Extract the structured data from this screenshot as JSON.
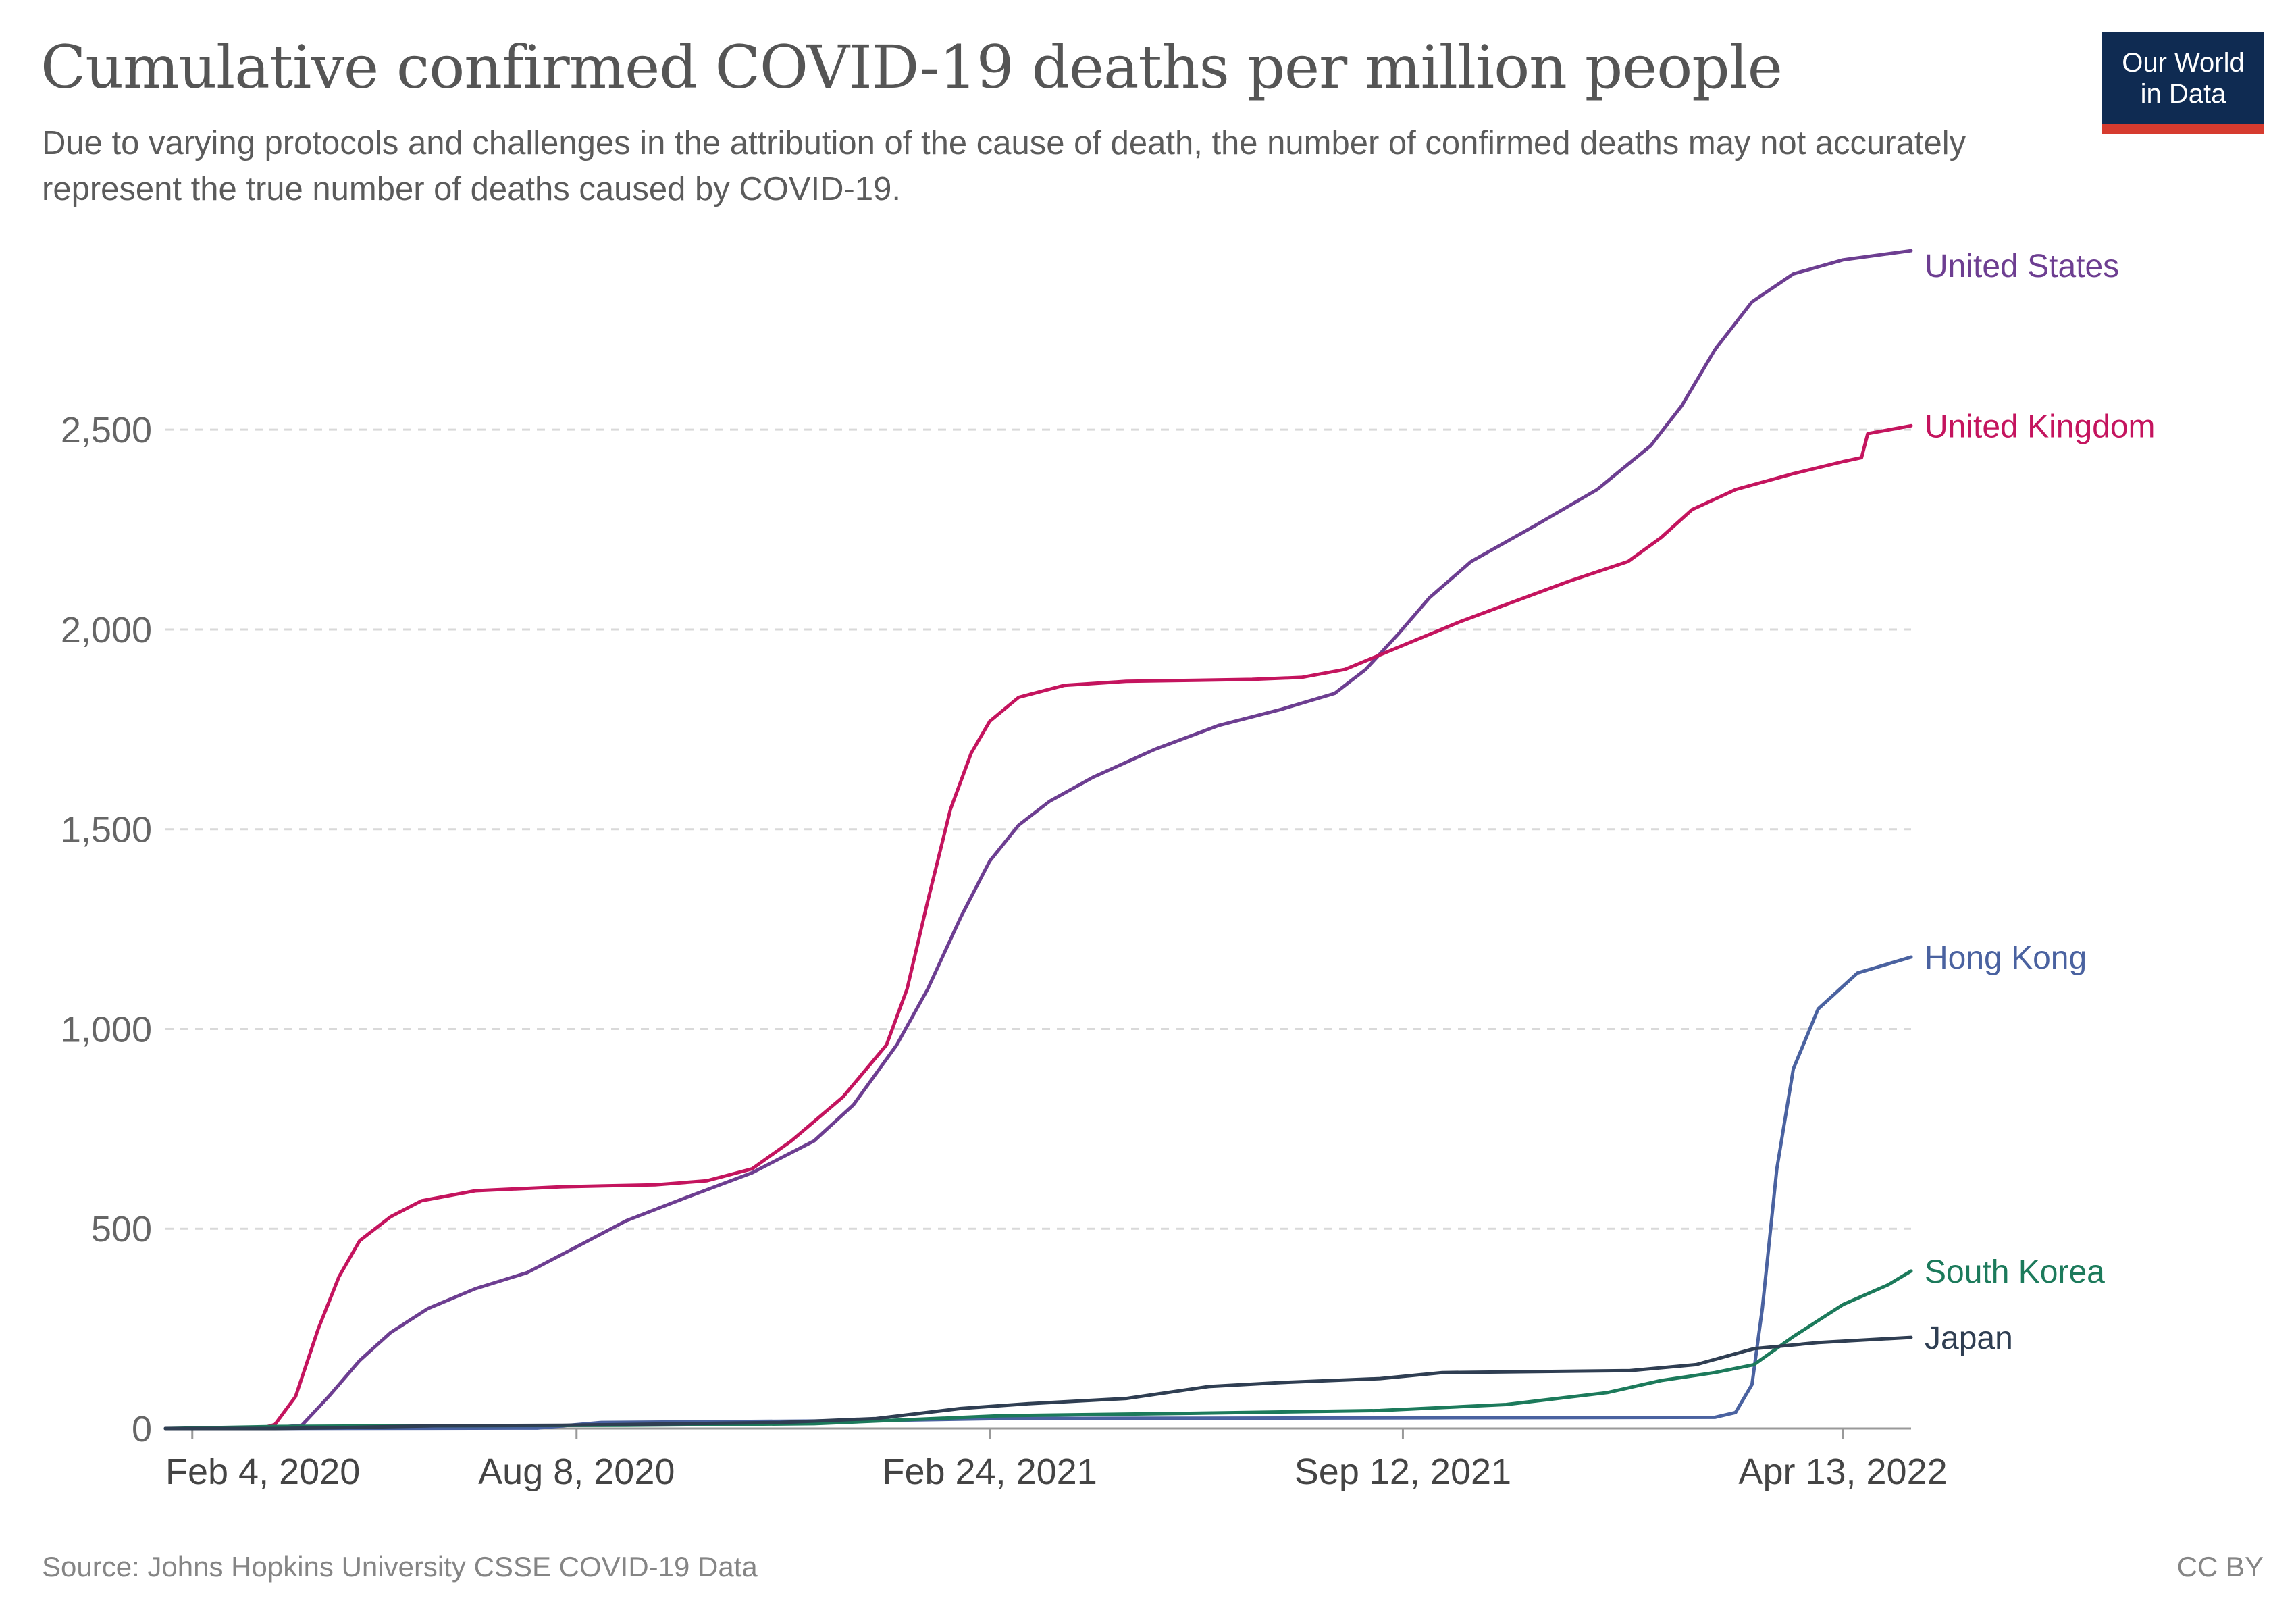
{
  "header": {
    "title": "Cumulative confirmed COVID-19 deaths per million people",
    "subtitle": "Due to varying protocols and challenges in the attribution of the cause of death, the number of confirmed deaths may not accurately represent the true number of deaths caused by COVID-19.",
    "logo_line1": "Our World",
    "logo_line2": "in Data"
  },
  "footer": {
    "source": "Source: Johns Hopkins University CSSE COVID-19 Data",
    "license": "CC BY"
  },
  "colors": {
    "logo_bg": "#0f2b52",
    "logo_accent": "#d63b2f",
    "gridline": "#d9d9d9"
  },
  "chart_data": {
    "type": "line",
    "x_start": "2020-01-22",
    "x_end": "2022-05-16",
    "x_tick_labels": [
      "Feb 4, 2020",
      "Aug 8, 2020",
      "Feb 24, 2021",
      "Sep 12, 2021",
      "Apr 13, 2022"
    ],
    "x_tick_dates": [
      "2020-02-04",
      "2020-08-08",
      "2021-02-24",
      "2021-09-12",
      "2022-04-13"
    ],
    "y_ticks": [
      0,
      500,
      1000,
      1500,
      2000,
      2500
    ],
    "y_tick_labels": [
      "0",
      "500",
      "1,000",
      "1,500",
      "2,000",
      "2,500"
    ],
    "ylim": [
      0,
      2950
    ],
    "grid": "horizontal dashed",
    "legend": "line-end labels",
    "series": [
      {
        "name": "United States",
        "color": "#6d3e91",
        "points": [
          [
            "2020-01-22",
            0
          ],
          [
            "2020-03-10",
            0
          ],
          [
            "2020-03-28",
            8
          ],
          [
            "2020-04-10",
            80
          ],
          [
            "2020-04-25",
            170
          ],
          [
            "2020-05-10",
            240
          ],
          [
            "2020-05-28",
            300
          ],
          [
            "2020-06-20",
            350
          ],
          [
            "2020-07-15",
            390
          ],
          [
            "2020-08-10",
            460
          ],
          [
            "2020-09-01",
            520
          ],
          [
            "2020-10-01",
            580
          ],
          [
            "2020-11-01",
            640
          ],
          [
            "2020-12-01",
            720
          ],
          [
            "2020-12-20",
            810
          ],
          [
            "2021-01-10",
            960
          ],
          [
            "2021-01-25",
            1100
          ],
          [
            "2021-02-10",
            1280
          ],
          [
            "2021-02-24",
            1420
          ],
          [
            "2021-03-10",
            1510
          ],
          [
            "2021-03-25",
            1570
          ],
          [
            "2021-04-15",
            1630
          ],
          [
            "2021-05-15",
            1700
          ],
          [
            "2021-06-15",
            1760
          ],
          [
            "2021-07-15",
            1800
          ],
          [
            "2021-08-10",
            1840
          ],
          [
            "2021-08-25",
            1900
          ],
          [
            "2021-09-10",
            1990
          ],
          [
            "2021-09-25",
            2080
          ],
          [
            "2021-10-15",
            2170
          ],
          [
            "2021-11-15",
            2260
          ],
          [
            "2021-12-15",
            2350
          ],
          [
            "2022-01-10",
            2460
          ],
          [
            "2022-01-25",
            2560
          ],
          [
            "2022-02-10",
            2700
          ],
          [
            "2022-02-28",
            2820
          ],
          [
            "2022-03-20",
            2890
          ],
          [
            "2022-04-13",
            2925
          ],
          [
            "2022-05-16",
            2948
          ]
        ]
      },
      {
        "name": "United Kingdom",
        "color": "#c4145e",
        "points": [
          [
            "2020-01-22",
            0
          ],
          [
            "2020-03-08",
            0
          ],
          [
            "2020-03-15",
            10
          ],
          [
            "2020-03-25",
            80
          ],
          [
            "2020-04-05",
            250
          ],
          [
            "2020-04-15",
            380
          ],
          [
            "2020-04-25",
            470
          ],
          [
            "2020-05-10",
            530
          ],
          [
            "2020-05-25",
            570
          ],
          [
            "2020-06-20",
            595
          ],
          [
            "2020-08-01",
            605
          ],
          [
            "2020-09-15",
            610
          ],
          [
            "2020-10-10",
            620
          ],
          [
            "2020-11-01",
            650
          ],
          [
            "2020-11-20",
            720
          ],
          [
            "2020-12-15",
            830
          ],
          [
            "2021-01-05",
            960
          ],
          [
            "2021-01-15",
            1100
          ],
          [
            "2021-01-25",
            1320
          ],
          [
            "2021-02-05",
            1550
          ],
          [
            "2021-02-15",
            1690
          ],
          [
            "2021-02-24",
            1770
          ],
          [
            "2021-03-10",
            1830
          ],
          [
            "2021-04-01",
            1860
          ],
          [
            "2021-05-01",
            1870
          ],
          [
            "2021-07-01",
            1875
          ],
          [
            "2021-07-25",
            1880
          ],
          [
            "2021-08-15",
            1900
          ],
          [
            "2021-09-12",
            1960
          ],
          [
            "2021-10-10",
            2020
          ],
          [
            "2021-11-05",
            2070
          ],
          [
            "2021-12-01",
            2120
          ],
          [
            "2021-12-30",
            2170
          ],
          [
            "2022-01-15",
            2230
          ],
          [
            "2022-01-30",
            2300
          ],
          [
            "2022-02-20",
            2350
          ],
          [
            "2022-03-20",
            2390
          ],
          [
            "2022-04-13",
            2420
          ],
          [
            "2022-04-22",
            2430
          ],
          [
            "2022-04-25",
            2490
          ],
          [
            "2022-05-16",
            2510
          ]
        ]
      },
      {
        "name": "Hong Kong",
        "color": "#4a62a0",
        "points": [
          [
            "2020-01-22",
            0
          ],
          [
            "2020-07-20",
            1
          ],
          [
            "2020-08-20",
            15
          ],
          [
            "2021-01-01",
            20
          ],
          [
            "2021-03-01",
            25
          ],
          [
            "2022-02-10",
            28
          ],
          [
            "2022-02-20",
            40
          ],
          [
            "2022-02-28",
            110
          ],
          [
            "2022-03-05",
            300
          ],
          [
            "2022-03-12",
            650
          ],
          [
            "2022-03-20",
            900
          ],
          [
            "2022-04-01",
            1050
          ],
          [
            "2022-04-20",
            1140
          ],
          [
            "2022-05-16",
            1180
          ]
        ]
      },
      {
        "name": "South Korea",
        "color": "#1c7a5b",
        "points": [
          [
            "2020-01-22",
            0
          ],
          [
            "2020-03-15",
            5
          ],
          [
            "2020-06-01",
            7
          ],
          [
            "2020-09-01",
            8
          ],
          [
            "2020-12-01",
            12
          ],
          [
            "2021-03-01",
            32
          ],
          [
            "2021-06-01",
            38
          ],
          [
            "2021-09-01",
            45
          ],
          [
            "2021-11-01",
            60
          ],
          [
            "2021-12-20",
            90
          ],
          [
            "2022-01-15",
            120
          ],
          [
            "2022-02-10",
            140
          ],
          [
            "2022-03-01",
            160
          ],
          [
            "2022-03-20",
            230
          ],
          [
            "2022-04-13",
            310
          ],
          [
            "2022-05-05",
            360
          ],
          [
            "2022-05-16",
            394
          ]
        ]
      },
      {
        "name": "Japan",
        "color": "#2f3e52",
        "points": [
          [
            "2020-01-22",
            0
          ],
          [
            "2020-03-15",
            0
          ],
          [
            "2020-04-15",
            2
          ],
          [
            "2020-06-01",
            7
          ],
          [
            "2020-08-01",
            8
          ],
          [
            "2020-11-15",
            15
          ],
          [
            "2020-12-31",
            25
          ],
          [
            "2021-02-10",
            50
          ],
          [
            "2021-03-15",
            62
          ],
          [
            "2021-05-01",
            75
          ],
          [
            "2021-06-10",
            105
          ],
          [
            "2021-07-15",
            115
          ],
          [
            "2021-09-01",
            125
          ],
          [
            "2021-10-01",
            140
          ],
          [
            "2021-12-31",
            145
          ],
          [
            "2022-02-01",
            160
          ],
          [
            "2022-03-01",
            200
          ],
          [
            "2022-04-01",
            215
          ],
          [
            "2022-05-16",
            228
          ]
        ]
      }
    ]
  }
}
